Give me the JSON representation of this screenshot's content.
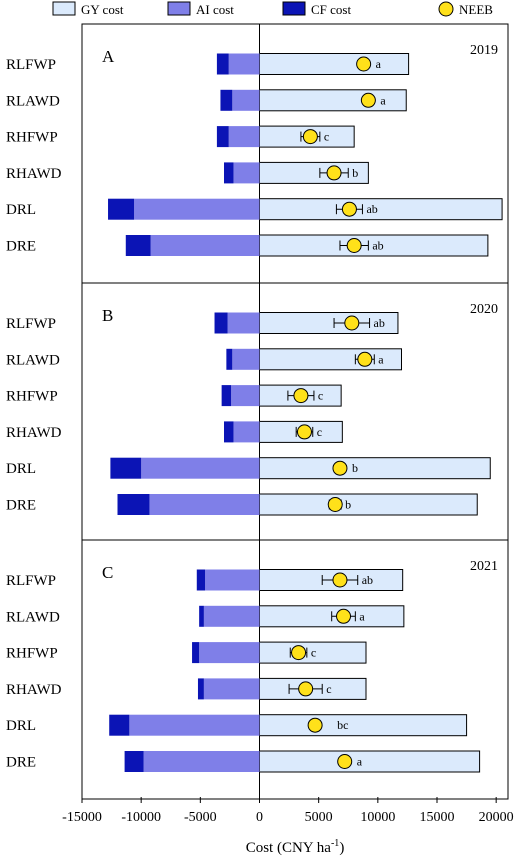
{
  "chart_data": {
    "type": "bar",
    "orientation": "horizontal-stacked",
    "xlabel": "Cost (CNY ha",
    "xlabel_sup": "-1",
    "xlabel_close": ")",
    "xlim": [
      -15000,
      21000
    ],
    "xticks": [
      -15000,
      -10000,
      -5000,
      0,
      5000,
      10000,
      15000,
      20000
    ],
    "xtick_labels": [
      "-15000",
      "-10000",
      "-5000",
      "0",
      "5000",
      "10000",
      "15000",
      "20000"
    ],
    "legend": {
      "position": "top",
      "entries": [
        {
          "name": "GY cost",
          "color": "#dbeafc",
          "shape": "rect"
        },
        {
          "name": "AI cost",
          "color": "#7f7fe8",
          "shape": "rect"
        },
        {
          "name": "CF cost",
          "color": "#0b14b5",
          "shape": "rect"
        },
        {
          "name": "NEEB",
          "color": "#ffe11a",
          "shape": "circle"
        }
      ]
    },
    "categories": [
      "RLFWP",
      "RLAWD",
      "RHFWP",
      "RHAWD",
      "DRL",
      "DRE"
    ],
    "panels": [
      {
        "letter": "A",
        "year": "2019",
        "gy_cost": [
          12600,
          12400,
          8000,
          9200,
          20500,
          19300
        ],
        "ai_cost": [
          -2600,
          -2300,
          -2600,
          -2200,
          -10600,
          -9200
        ],
        "cf_cost": [
          -1000,
          -1000,
          -1000,
          -800,
          -2200,
          -2100
        ],
        "neeb": [
          8800,
          9200,
          4300,
          6300,
          7600,
          8000
        ],
        "neeb_err": [
          0,
          0,
          800,
          1200,
          1100,
          1200
        ],
        "sig": [
          "a",
          "a",
          "c",
          "b",
          "ab",
          "ab"
        ]
      },
      {
        "letter": "B",
        "year": "2020",
        "gy_cost": [
          11700,
          12000,
          6900,
          7000,
          19500,
          18400
        ],
        "ai_cost": [
          -2700,
          -2300,
          -2400,
          -2200,
          -10000,
          -9300
        ],
        "cf_cost": [
          -1100,
          -500,
          -800,
          -800,
          -2600,
          -2700
        ],
        "neeb": [
          7800,
          8900,
          3500,
          3800,
          6800,
          6400
        ],
        "neeb_err": [
          1500,
          800,
          1100,
          700,
          0,
          500
        ],
        "sig": [
          "ab",
          "a",
          "c",
          "c",
          "b",
          "b"
        ]
      },
      {
        "letter": "C",
        "year": "2021",
        "gy_cost": [
          12100,
          12200,
          9000,
          9000,
          17500,
          18600
        ],
        "ai_cost": [
          -4600,
          -4700,
          -5100,
          -4700,
          -11000,
          -9800
        ],
        "cf_cost": [
          -700,
          -400,
          -600,
          -500,
          -1700,
          -1600
        ],
        "neeb": [
          6800,
          7100,
          3300,
          3900,
          4700,
          7200
        ],
        "neeb_err": [
          1500,
          1000,
          700,
          1400,
          0,
          0
        ],
        "sig": [
          "ab",
          "a",
          "c",
          "c",
          "bc",
          "a"
        ]
      }
    ]
  }
}
